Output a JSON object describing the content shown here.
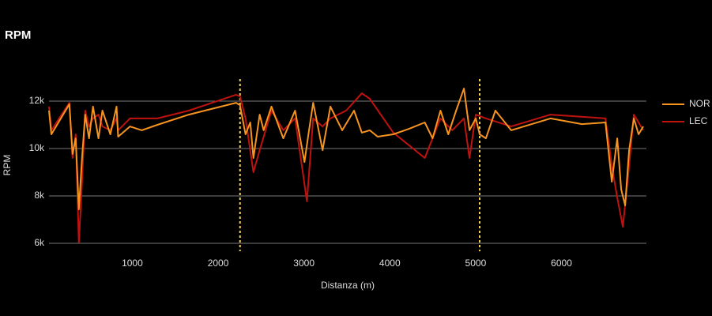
{
  "chart_data": {
    "type": "line",
    "title": "RPM",
    "xlabel": "Distanza (m)",
    "ylabel": "RPM",
    "xlim": [
      0,
      6960
    ],
    "ylim": [
      5667,
      12933
    ],
    "xticks": [
      1000,
      2000,
      3000,
      4000,
      5000,
      6000
    ],
    "yticks": [
      {
        "value": 6000,
        "label": "6k"
      },
      {
        "value": 8000,
        "label": "8k"
      },
      {
        "value": 10000,
        "label": "10k"
      },
      {
        "value": 12000,
        "label": "12k"
      }
    ],
    "grid": true,
    "legend": "right",
    "vlines": [
      2255,
      5047
    ],
    "vline_color": "#f5d24a",
    "series": [
      {
        "name": "NOR",
        "color": "#f7941d",
        "x": [
          29,
          57,
          267,
          304,
          341,
          377,
          414,
          451,
          496,
          542,
          606,
          652,
          744,
          817,
          835,
          973,
          1110,
          1293,
          1659,
          2209,
          2255,
          2319,
          2374,
          2411,
          2484,
          2530,
          2621,
          2759,
          2896,
          3006,
          3052,
          3107,
          3217,
          3308,
          3446,
          3583,
          3674,
          3766,
          3858,
          4041,
          4224,
          4407,
          4498,
          4590,
          4681,
          4773,
          4864,
          4928,
          5002,
          5047,
          5120,
          5230,
          5414,
          5872,
          6238,
          6513,
          6586,
          6650,
          6696,
          6742,
          6788,
          6843,
          6898,
          6953
        ],
        "values": [
          11600,
          10600,
          11870,
          9770,
          10430,
          7430,
          9600,
          11430,
          10430,
          11770,
          10430,
          11600,
          10600,
          11770,
          10500,
          10930,
          10770,
          11000,
          11430,
          11930,
          11830,
          10600,
          11100,
          9600,
          11430,
          10770,
          11770,
          10430,
          11600,
          9430,
          10600,
          11930,
          9930,
          11770,
          10770,
          11600,
          10670,
          10770,
          10500,
          10600,
          10830,
          11100,
          10430,
          11600,
          10600,
          11600,
          12530,
          10770,
          11270,
          10600,
          10430,
          11600,
          10770,
          11270,
          11030,
          11100,
          8600,
          10430,
          8270,
          7600,
          9930,
          11270,
          10600,
          10930
        ]
      },
      {
        "name": "LEC",
        "color": "#c0120f",
        "x": [
          29,
          57,
          267,
          304,
          341,
          377,
          414,
          451,
          496,
          542,
          606,
          652,
          744,
          817,
          835,
          973,
          1293,
          1659,
          2209,
          2255,
          2319,
          2411,
          2484,
          2621,
          2759,
          2896,
          3034,
          3107,
          3217,
          3308,
          3491,
          3674,
          3766,
          4041,
          4407,
          4590,
          4727,
          4864,
          4928,
          5002,
          5120,
          5414,
          5872,
          6513,
          6586,
          6650,
          6715,
          6788,
          6843,
          6898,
          6953
        ],
        "values": [
          11770,
          10770,
          11930,
          9600,
          10600,
          6030,
          8600,
          11600,
          10930,
          11270,
          11430,
          10930,
          10770,
          11270,
          10770,
          11270,
          11270,
          11600,
          12270,
          12200,
          11270,
          9000,
          9930,
          11600,
          10770,
          11270,
          7770,
          11270,
          10930,
          11270,
          11600,
          12330,
          12100,
          10670,
          9600,
          11270,
          10770,
          11270,
          9600,
          11430,
          11270,
          10930,
          11430,
          11270,
          9270,
          7930,
          6700,
          9270,
          11430,
          11100,
          10770
        ]
      }
    ]
  }
}
